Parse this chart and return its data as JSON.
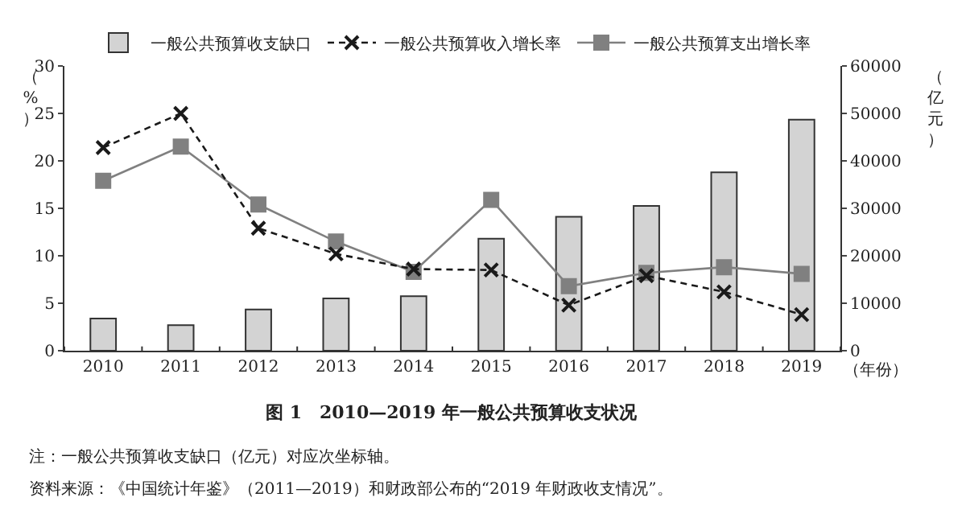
{
  "chart_data": {
    "type": "bar",
    "title": "图 1　2010—2019 年一般公共预算收支状况",
    "xlabel": "（年份）",
    "ylabel": "（%）",
    "y2label": "（亿元）",
    "categories": [
      "2010",
      "2011",
      "2012",
      "2013",
      "2014",
      "2015",
      "2016",
      "2017",
      "2018",
      "2019"
    ],
    "series": [
      {
        "name": "一般公共预算收支缺口",
        "axis": "y2",
        "color": "#d3d3d3",
        "values": [
          6800,
          5400,
          8700,
          11000,
          11500,
          23600,
          28200,
          30500,
          37600,
          48700
        ]
      },
      {
        "name": "一般公共预算收入增长率",
        "type": "line",
        "color": "#1a1a1a",
        "marker": "cross",
        "line_style": "dashed",
        "values": [
          21.4,
          25.0,
          12.9,
          10.2,
          8.6,
          8.5,
          4.8,
          7.9,
          6.2,
          3.8
        ]
      },
      {
        "name": "一般公共预算支出增长率",
        "type": "line",
        "color": "#808080",
        "marker": "square",
        "line_style": "solid",
        "values": [
          17.9,
          21.5,
          15.4,
          11.5,
          8.3,
          15.9,
          6.8,
          8.2,
          8.8,
          8.1
        ]
      }
    ],
    "ylim": [
      0,
      30
    ],
    "yticks": [
      0,
      5,
      10,
      15,
      20,
      25,
      30
    ],
    "y2lim": [
      0,
      60000
    ],
    "y2ticks": [
      0,
      10000,
      20000,
      30000,
      40000,
      50000,
      60000
    ],
    "legend": "top",
    "annotations": [
      "注：一般公共预算收支缺口（亿元）对应次坐标轴。",
      "资料来源：《中国统计年鉴》（2011—2019）和财政部公布的“2019 年财政收支情况”。"
    ]
  }
}
